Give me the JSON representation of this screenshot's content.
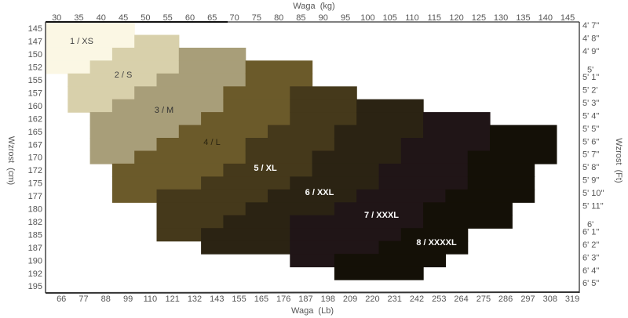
{
  "chart_data": {
    "type": "heatmap",
    "title": "",
    "x_top_label": "Waga  (kg)",
    "x_bottom_label": "Waga  (Lb)",
    "y_left_label": "Wzrost  (cm)",
    "y_right_label": "Wzrost  (Ft)",
    "x_ticks_kg": [
      "30",
      "35",
      "40",
      "45",
      "50",
      "55",
      "60",
      "65",
      "70",
      "75",
      "80",
      "85",
      "90",
      "95",
      "100",
      "105",
      "110",
      "115",
      "120",
      "125",
      "130",
      "135",
      "140",
      "145"
    ],
    "x_ticks_lb": [
      "66",
      "77",
      "88",
      "99",
      "110",
      "121",
      "132",
      "143",
      "155",
      "165",
      "176",
      "187",
      "198",
      "209",
      "220",
      "231",
      "242",
      "253",
      "264",
      "275",
      "286",
      "297",
      "308",
      "319"
    ],
    "y_ticks_cm": [
      "145",
      "147",
      "150",
      "152",
      "155",
      "157",
      "160",
      "162",
      "165",
      "167",
      "170",
      "172",
      "175",
      "177",
      "180",
      "182",
      "185",
      "187",
      "190",
      "192",
      "195"
    ],
    "y_ticks_ft": [
      "4'  7\"",
      "4'  8\"",
      "4'  9\"",
      "5'",
      "5'  1\"",
      "5'  2'",
      "5'  3\"",
      "5'  4\"",
      "5'  5\"",
      "5'  6\"",
      "5'  7\"",
      "5'  8\"",
      "5'  9\"",
      "5'  10\"",
      "5'  11\"",
      "6'",
      "6'  1\"",
      "6'  2\"",
      "6'  3\"",
      "6'  4\"",
      "6'  5\""
    ],
    "row_format": [
      "height_cm",
      "weight_kg_from",
      "weight_kg_to"
    ],
    "sizes": [
      {
        "label": "1  /  XS",
        "color": "#fbf7e4",
        "text_color": "#444444",
        "rows": [
          [
            "145",
            30,
            45
          ],
          [
            "147",
            30,
            45
          ],
          [
            "150",
            30,
            40
          ],
          [
            "152",
            30,
            35
          ]
        ]
      },
      {
        "label": "2  /  S",
        "color": "#d8d0ab",
        "text_color": "#444444",
        "rows": [
          [
            "147",
            50,
            55
          ],
          [
            "150",
            45,
            55
          ],
          [
            "152",
            40,
            55
          ],
          [
            "155",
            35,
            50
          ],
          [
            "157",
            35,
            45
          ],
          [
            "160",
            35,
            40
          ]
        ]
      },
      {
        "label": "3  /  M",
        "color": "#a89e79",
        "text_color": "#333333",
        "rows": [
          [
            "150",
            60,
            70
          ],
          [
            "152",
            60,
            70
          ],
          [
            "155",
            55,
            70
          ],
          [
            "157",
            50,
            65
          ],
          [
            "160",
            45,
            65
          ],
          [
            "162",
            40,
            60
          ],
          [
            "165",
            40,
            55
          ],
          [
            "167",
            40,
            50
          ],
          [
            "170",
            40,
            45
          ]
        ]
      },
      {
        "label": "4  /  L",
        "color": "#6b5a2a",
        "text_color": "#2a2410",
        "rows": [
          [
            "152",
            75,
            85
          ],
          [
            "155",
            75,
            85
          ],
          [
            "157",
            70,
            80
          ],
          [
            "160",
            70,
            80
          ],
          [
            "162",
            65,
            80
          ],
          [
            "165",
            60,
            75
          ],
          [
            "167",
            55,
            70
          ],
          [
            "170",
            50,
            70
          ],
          [
            "172",
            45,
            65
          ],
          [
            "175",
            45,
            60
          ],
          [
            "177",
            45,
            50
          ]
        ]
      },
      {
        "label": "5  /  XL",
        "color": "#45391b",
        "text_color": "#ffffff",
        "rows": [
          [
            "157",
            85,
            95
          ],
          [
            "160",
            85,
            95
          ],
          [
            "162",
            85,
            95
          ],
          [
            "165",
            80,
            90
          ],
          [
            "167",
            75,
            90
          ],
          [
            "170",
            75,
            85
          ],
          [
            "172",
            70,
            85
          ],
          [
            "175",
            65,
            80
          ],
          [
            "177",
            55,
            75
          ],
          [
            "180",
            55,
            70
          ],
          [
            "182",
            55,
            65
          ],
          [
            "185",
            55,
            60
          ]
        ]
      },
      {
        "label": "6  /  XXL",
        "color": "#2b2313",
        "text_color": "#ffffff",
        "rows": [
          [
            "160",
            100,
            110
          ],
          [
            "162",
            100,
            110
          ],
          [
            "165",
            95,
            110
          ],
          [
            "167",
            95,
            105
          ],
          [
            "170",
            90,
            105
          ],
          [
            "172",
            90,
            100
          ],
          [
            "175",
            85,
            100
          ],
          [
            "177",
            80,
            95
          ],
          [
            "180",
            75,
            90
          ],
          [
            "182",
            70,
            80
          ],
          [
            "185",
            65,
            80
          ],
          [
            "187",
            65,
            80
          ]
        ]
      },
      {
        "label": "7  /  XXXL",
        "color": "#201517",
        "text_color": "#ffffff",
        "rows": [
          [
            "162",
            115,
            125
          ],
          [
            "165",
            115,
            125
          ],
          [
            "167",
            110,
            125
          ],
          [
            "170",
            110,
            120
          ],
          [
            "172",
            105,
            120
          ],
          [
            "175",
            105,
            120
          ],
          [
            "177",
            100,
            115
          ],
          [
            "180",
            95,
            110
          ],
          [
            "182",
            85,
            110
          ],
          [
            "185",
            85,
            105
          ],
          [
            "187",
            85,
            100
          ],
          [
            "190",
            85,
            90
          ]
        ]
      },
      {
        "label": "8  /  XXXXL",
        "color": "#141007",
        "text_color": "#ffffff",
        "rows": [
          [
            "165",
            130,
            140
          ],
          [
            "167",
            130,
            140
          ],
          [
            "170",
            125,
            140
          ],
          [
            "172",
            125,
            135
          ],
          [
            "175",
            125,
            135
          ],
          [
            "177",
            120,
            135
          ],
          [
            "180",
            115,
            130
          ],
          [
            "182",
            115,
            130
          ],
          [
            "185",
            110,
            120
          ],
          [
            "187",
            105,
            120
          ],
          [
            "190",
            95,
            115
          ],
          [
            "192",
            95,
            110
          ]
        ]
      }
    ],
    "grid": false,
    "legend": "none"
  }
}
